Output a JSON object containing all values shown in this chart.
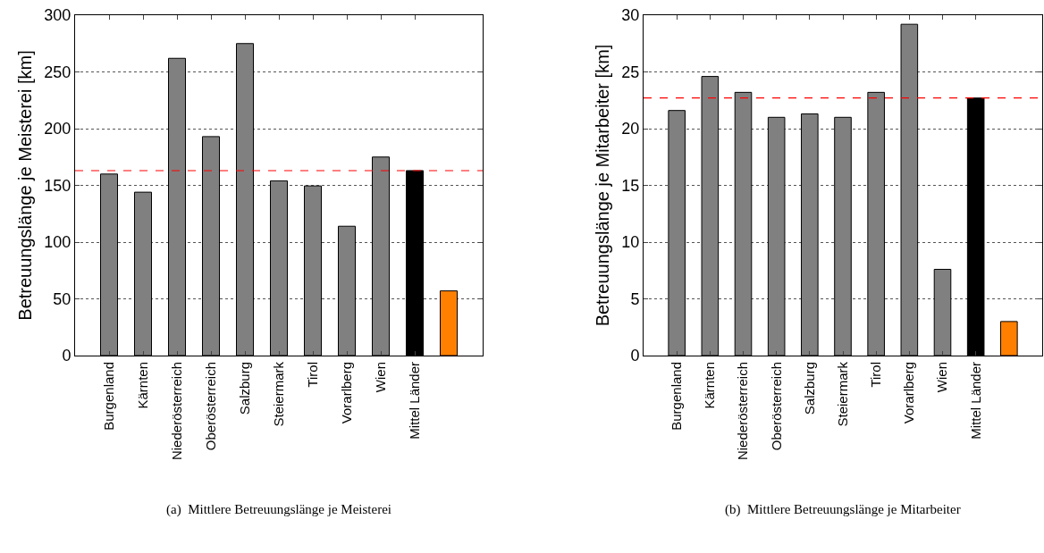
{
  "chart_data": [
    {
      "type": "bar",
      "ylabel": "Betreuungslänge je Meisterei [km]",
      "categories": [
        "Burgenland",
        "Kärnten",
        "Niederösterreich",
        "Oberösterreich",
        "Salzburg",
        "Steiermark",
        "Tirol",
        "Vorarlberg",
        "Wien",
        "Mittel Länder",
        null
      ],
      "values": [
        160,
        144,
        262,
        193,
        275,
        154,
        149.5,
        114,
        175,
        163,
        57
      ],
      "colors": [
        "#808080",
        "#808080",
        "#808080",
        "#808080",
        "#808080",
        "#808080",
        "#808080",
        "#808080",
        "#808080",
        "#000000",
        "#ff8000"
      ],
      "ylim": [
        0,
        300
      ],
      "yticks": [
        0,
        50,
        100,
        150,
        200,
        250,
        300
      ],
      "grid": "y",
      "ref_lines": [
        {
          "axis": "y",
          "value": 163,
          "color": "#ff0000",
          "line_style": "dashed"
        }
      ],
      "annotations": [
        "(a)  Mittlere Betreuungslänge je Meisterei"
      ]
    },
    {
      "type": "bar",
      "ylabel": "Betreuungslänge je Mitarbeiter [km]",
      "categories": [
        "Burgenland",
        "Kärnten",
        "Niederösterreich",
        "Oberösterreich",
        "Salzburg",
        "Steiermark",
        "Tirol",
        "Vorarlberg",
        "Wien",
        "Mittel Länder",
        null
      ],
      "values": [
        21.6,
        24.6,
        23.2,
        21.0,
        21.3,
        21.0,
        23.2,
        29.2,
        7.6,
        22.7,
        3.0
      ],
      "colors": [
        "#808080",
        "#808080",
        "#808080",
        "#808080",
        "#808080",
        "#808080",
        "#808080",
        "#808080",
        "#808080",
        "#000000",
        "#ff8000"
      ],
      "ylim": [
        0,
        30
      ],
      "yticks": [
        0,
        5,
        10,
        15,
        20,
        25,
        30
      ],
      "grid": "y",
      "ref_lines": [
        {
          "axis": "y",
          "value": 22.7,
          "color": "#ff0000",
          "line_style": "dashed"
        }
      ],
      "annotations": [
        "(b)  Mittlere Betreuungslänge je Mitarbeiter"
      ]
    }
  ]
}
